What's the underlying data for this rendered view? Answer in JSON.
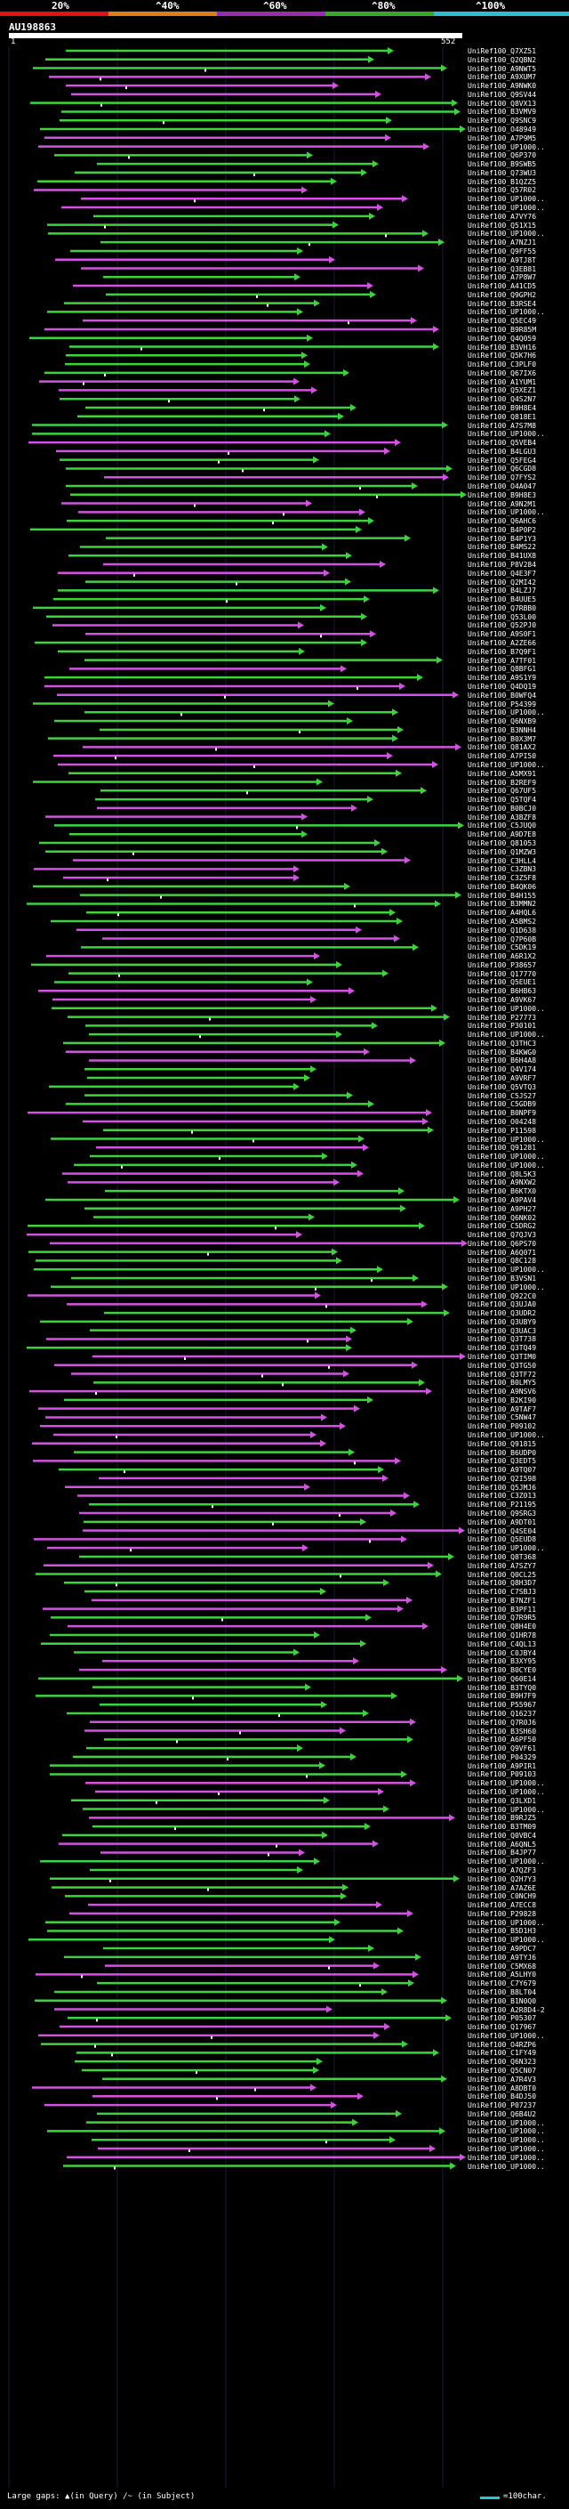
{
  "scale": {
    "labels": [
      "20%",
      "^40%",
      "^60%",
      "^80%",
      "^100%"
    ],
    "colors": [
      "#e0121b",
      "#e87a12",
      "#9a2bb5",
      "#2fae1e",
      "#2cc1c9"
    ]
  },
  "query": {
    "title": "AU198863",
    "start": "1",
    "end": "552"
  },
  "footer": {
    "gaps_label": "Large gaps:",
    "in_query": "▲(in Query)",
    "in_subject": "/~ (in Subject)",
    "legend": "=100char."
  },
  "colors": {
    "green": "#3fd23f",
    "magenta": "#d253e0",
    "background": "#000000"
  },
  "hits": [
    "UniRef100_Q7XZ51",
    "UniRef100_Q2QBN2",
    "UniRef100_A9NWT5",
    "UniRef100_A9XUM7",
    "UniRef100_A9NWK0",
    "UniRef100_Q9SV44",
    "UniRef100_Q8VX13",
    "UniRef100_B3VMV9",
    "UniRef100_Q9SNC9",
    "UniRef100_O48949",
    "UniRef100_A7P9M5",
    "UniRef100_UP1000..",
    "UniRef100_Q6P370",
    "UniRef100_B9SWB5",
    "UniRef100_Q73WU3",
    "UniRef100_B1QZZ5",
    "UniRef100_Q57R02",
    "UniRef100_UP1000..",
    "UniRef100_UP1000..",
    "UniRef100_A7VY76",
    "UniRef100_Q51X15",
    "UniRef100_UP1000..",
    "UniRef100_A7NZJ1",
    "UniRef100_Q9FF55",
    "UniRef100_A9TJ8T",
    "UniRef100_Q3EB81",
    "UniRef100_A7P8W7",
    "UniRef100_A41CD5",
    "UniRef100_Q9GPH2",
    "UniRef100_B3RSE4",
    "UniRef100_UP1000..",
    "UniRef100_Q5EC49",
    "UniRef100_B9R85M",
    "UniRef100_Q4Q059",
    "UniRef100_B3VH16",
    "UniRef100_Q5K7H6",
    "UniRef100_C3PLF0",
    "UniRef100_Q67IX6",
    "UniRef100_A1YUM1",
    "UniRef100_Q5XEZ1",
    "UniRef100_Q4S2N7",
    "UniRef100_B9H8E4",
    "UniRef100_Q818E1",
    "UniRef100_A7S7M8",
    "UniRef100_UP1000..",
    "UniRef100_Q5VEB4",
    "UniRef100_B4LGU3",
    "UniRef100_Q5FEG4",
    "UniRef100_Q6CGD8",
    "UniRef100_Q7FYS2",
    "UniRef100_O4A047",
    "UniRef100_B9H8E3",
    "UniRef100_A9N2M1",
    "UniRef100_UP1000..",
    "UniRef100_Q6AHC6",
    "UniRef100_B4P0P2",
    "UniRef100_B4P1Y3",
    "UniRef100_B4MS22",
    "UniRef100_B41UX8",
    "UniRef100_P8V284",
    "UniRef100_Q4E3F7",
    "UniRef100_Q2MI42",
    "UniRef100_B4LZJ7",
    "UniRef100_B4UUE5",
    "UniRef100_Q7RBB0",
    "UniRef100_Q53L00",
    "UniRef100_Q52PJ0",
    "UniRef100_A9S0F1",
    "UniRef100_A2ZE66",
    "UniRef100_B7Q9F1",
    "UniRef100_A7TF01",
    "UniRef100_Q8BFG1",
    "UniRef100_A9S1Y9",
    "UniRef100_Q4DQ19",
    "UniRef100_B0WFQ4",
    "UniRef100_P54399",
    "UniRef100_UP1000..",
    "UniRef100_Q6NXB9",
    "UniRef100_B3NNH4",
    "UniRef100_B0X3M7",
    "UniRef100_Q81AX2",
    "UniRef100_A7PI50",
    "UniRef100_UP1000..",
    "UniRef100_A5MX91",
    "UniRef100_B2REF9",
    "UniRef100_Q67UF5",
    "UniRef100_Q5TQF4",
    "UniRef100_B0BCJ0",
    "UniRef100_A3BZF8",
    "UniRef100_C5JUQ0",
    "UniRef100_A9D7E8",
    "UniRef100_Q81053",
    "UniRef100_Q1MZW3",
    "UniRef100_C3HLL4",
    "UniRef100_C3ZBN3",
    "UniRef100_C3Z5F8",
    "UniRef100_B4QK06",
    "UniRef100_B4H155",
    "UniRef100_B3MMN2",
    "UniRef100_A4HQL6",
    "UniRef100_A5BMS2",
    "UniRef100_Q1D638",
    "UniRef100_Q7P60B",
    "UniRef100_C5DK19",
    "UniRef100_A6R1X2",
    "UniRef100_P38657",
    "UniRef100_Q17770",
    "UniRef100_Q5EUE1",
    "UniRef100_B6HB63",
    "UniRef100_A9VK67",
    "UniRef100_UP1000..",
    "UniRef100_P27773",
    "UniRef100_P30101",
    "UniRef100_UP1000..",
    "UniRef100_Q3THC3",
    "UniRef100_B4KWG0",
    "UniRef100_B6H4A8",
    "UniRef100_Q4V174",
    "UniRef100_A9VRF7",
    "UniRef100_Q5VTQ3",
    "UniRef100_C5JS27",
    "UniRef100_C5GDB9",
    "UniRef100_B0NPF9",
    "UniRef100_O04248",
    "UniRef100_P11598",
    "UniRef100_UP1000..",
    "UniRef100_Q91281",
    "UniRef100_UP1000..",
    "UniRef100_UP1000..",
    "UniRef100_Q8L5K3",
    "UniRef100_A9NXW2",
    "UniRef100_B6KTX0",
    "UniRef100_A9PAV4",
    "UniRef100_A9PH27",
    "UniRef100_Q6NK02",
    "UniRef100_C5DRG2",
    "UniRef100_Q7QJV3",
    "UniRef100_Q6PS70",
    "UniRef100_A6Q071",
    "UniRef100_Q8C128",
    "UniRef100_UP1000..",
    "UniRef100_B3VSN1",
    "UniRef100_UP1000..",
    "UniRef100_Q922C0",
    "UniRef100_Q3UJA0",
    "UniRef100_Q3UDR2",
    "UniRef100_Q3UBY9",
    "UniRef100_Q3UAC3",
    "UniRef100_Q3T738",
    "UniRef100_Q3TQ49",
    "UniRef100_Q3TIM0",
    "UniRef100_Q3TG50",
    "UniRef100_Q3TF72",
    "UniRef100_B0LMY5",
    "UniRef100_A9NSV6",
    "UniRef100_B2KI90",
    "UniRef100_A9TAF7",
    "UniRef100_C5NW47",
    "UniRef100_P09102",
    "UniRef100_UP1000..",
    "UniRef100_Q91815",
    "UniRef100_B6UDP0",
    "UniRef100_Q3EDT5",
    "UniRef100_A9TQ07",
    "UniRef100_Q2I598",
    "UniRef100_Q5JMJ6",
    "UniRef100_C3Z013",
    "UniRef100_P21195",
    "UniRef100_Q9SRG3",
    "UniRef100_A9DT01",
    "UniRef100_Q4SE04",
    "UniRef100_Q5EUD8",
    "UniRef100_UP1000..",
    "UniRef100_Q8T368",
    "UniRef100_A7SZY7",
    "UniRef100_Q0CL25",
    "UniRef100_Q8H3D7",
    "UniRef100_C7SBJ3",
    "UniRef100_B7NZF1",
    "UniRef100_B3PF11",
    "UniRef100_Q7R9R5",
    "UniRef100_Q8H4E0",
    "UniRef100_Q1HR78",
    "UniRef100_C4QL13",
    "UniRef100_C0JBY4",
    "UniRef100_B3XY95",
    "UniRef100_B0CYE0",
    "UniRef100_Q60E14",
    "UniRef100_B3TYQ0",
    "UniRef100_B9H7F9",
    "UniRef100_P55967",
    "UniRef100_Q16237",
    "UniRef100_Q7R0J6",
    "UniRef100_B3SH60",
    "UniRef100_A6PF50",
    "UniRef100_Q9VF61",
    "UniRef100_P04329",
    "UniRef100_A9PIR1",
    "UniRef100_P09103",
    "UniRef100_UP1000..",
    "UniRef100_UP1000..",
    "UniRef100_Q3LXD1",
    "UniRef100_UP1000..",
    "UniRef100_B9RJZ5",
    "UniRef100_B3TM09",
    "UniRef100_Q0VBC4",
    "UniRef100_A6QNL5",
    "UniRef100_B4JP77",
    "UniRef100_UP1000..",
    "UniRef100_A7QZF3",
    "UniRef100_Q2H7Y3",
    "UniRef100_A7AZ6E",
    "UniRef100_C0NCH9",
    "UniRef100_A7ECC8",
    "UniRef100_P29828",
    "UniRef100_UP1000..",
    "UniRef100_B5D1H3",
    "UniRef100_UP1000..",
    "UniRef100_A9PDC7",
    "UniRef100_A9TYJ6",
    "UniRef100_C5MX68",
    "UniRef100_A5LHY0",
    "UniRef100_C7Y679",
    "UniRef100_B8LT04",
    "UniRef100_B1N0Q0",
    "UniRef100_A2R8D4-2",
    "UniRef100_P05307",
    "UniRef100_Q17967",
    "UniRef100_UP1000..",
    "UniRef100_O4RZP6",
    "UniRef100_C1FY49",
    "UniRef100_Q6N323",
    "UniRef100_Q5CN07",
    "UniRef100_A7R4V3",
    "UniRef100_A8DBT0",
    "UniRef100_B4DJ50",
    "UniRef100_P07237",
    "UniRef100_Q6B4U2",
    "UniRef100_UP1000..",
    "UniRef100_UP1000..",
    "UniRef100_UP1000..",
    "UniRef100_UP1000..",
    "UniRef100_UP1000..",
    "UniRef100_UP1000.."
  ]
}
